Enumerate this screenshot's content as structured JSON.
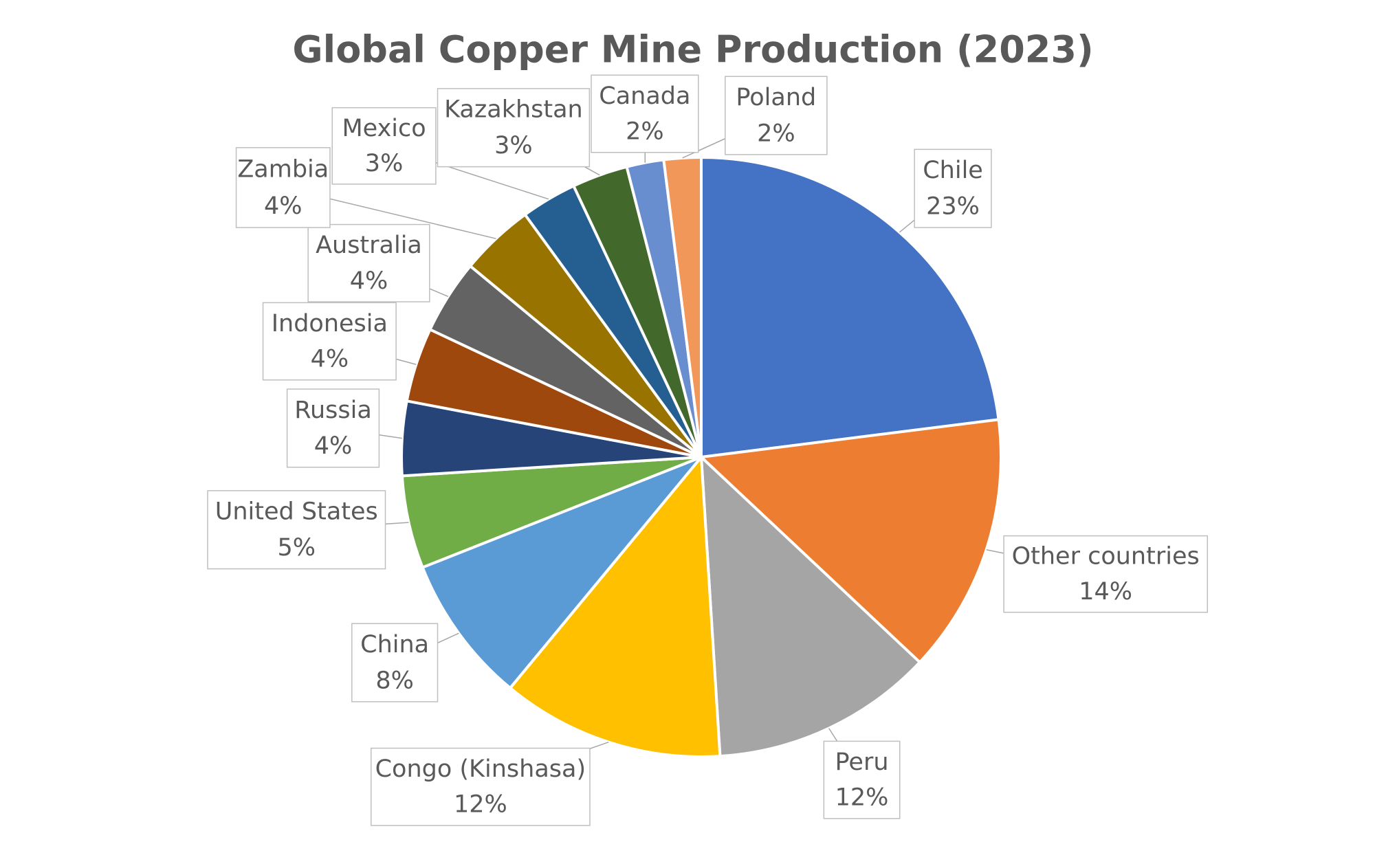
{
  "chart_data": {
    "type": "pie",
    "title": "Global Copper Mine Production (2023)",
    "categories": [
      "Chile",
      "Other countries",
      "Peru",
      "Congo (Kinshasa)",
      "China",
      "United States",
      "Russia",
      "Indonesia",
      "Australia",
      "Zambia",
      "Mexico",
      "Kazakhstan",
      "Canada",
      "Poland"
    ],
    "values": [
      23,
      14,
      12,
      12,
      8,
      5,
      4,
      4,
      4,
      4,
      3,
      3,
      2,
      2
    ],
    "value_labels": [
      "23%",
      "14%",
      "12%",
      "12%",
      "8%",
      "5%",
      "4%",
      "4%",
      "4%",
      "4%",
      "3%",
      "3%",
      "2%",
      "2%"
    ],
    "colors": [
      "#4472c4",
      "#ed7d31",
      "#a5a5a5",
      "#ffc000",
      "#5b9bd5",
      "#70ad47",
      "#264478",
      "#9e480e",
      "#636363",
      "#997300",
      "#255e91",
      "#43682b",
      "#698ed0",
      "#f1975a"
    ]
  }
}
